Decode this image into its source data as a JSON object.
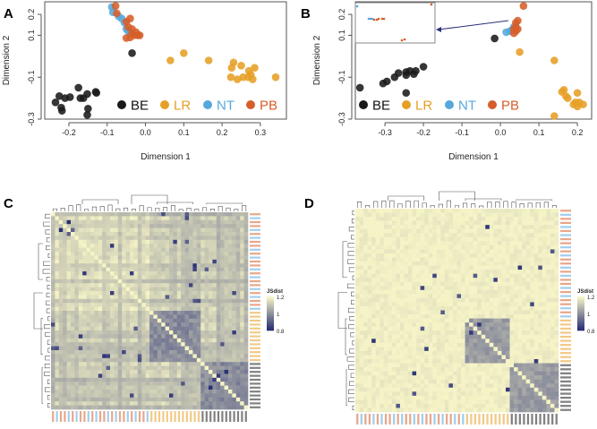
{
  "colors": {
    "BE": "#1a1a1a",
    "LR": "#e69f25",
    "NT": "#56a8dc",
    "PB": "#d55e2a",
    "heat_low": "#1c2470",
    "heat_high": "#f6f4c6"
  },
  "chart_data": [
    {
      "panel": "A",
      "type": "scatter",
      "xlabel": "Dimension 1",
      "ylabel": "Dimension 2",
      "xlim": [
        -0.263,
        0.368
      ],
      "ylim": [
        -0.3,
        0.26
      ],
      "xticks": [
        "-0.2",
        "-0.1",
        "0.0",
        "0.1",
        "0.2",
        "0.3"
      ],
      "xtick_values": [
        -0.2,
        -0.1,
        0,
        0.1,
        0.2,
        0.3
      ],
      "yticks": [
        "0.2",
        "0.1",
        "-0.1",
        "-0.3"
      ],
      "ytick_values": [
        0.2,
        0.1,
        -0.1,
        -0.3
      ],
      "legend": [
        "BE",
        "LR",
        "NT",
        "PB"
      ],
      "legend_position": "bottom-right",
      "series": [
        {
          "name": "BE",
          "points": [
            [
              -0.235,
              -0.22
            ],
            [
              -0.225,
              -0.19
            ],
            [
              -0.22,
              -0.245
            ],
            [
              -0.218,
              -0.26
            ],
            [
              -0.21,
              -0.2
            ],
            [
              -0.197,
              -0.195
            ],
            [
              -0.175,
              -0.15
            ],
            [
              -0.17,
              -0.2
            ],
            [
              -0.162,
              -0.2
            ],
            [
              -0.152,
              -0.18
            ],
            [
              -0.15,
              -0.25
            ],
            [
              -0.152,
              -0.28
            ],
            [
              -0.13,
              -0.17
            ],
            [
              -0.128,
              -0.175
            ],
            [
              -0.035,
              0.015
            ]
          ]
        },
        {
          "name": "LR",
          "points": [
            [
              0.065,
              -0.02
            ],
            [
              0.1,
              0.015
            ],
            [
              0.165,
              -0.02
            ],
            [
              0.23,
              -0.03
            ],
            [
              0.225,
              -0.055
            ],
            [
              0.25,
              -0.045
            ],
            [
              0.285,
              -0.055
            ],
            [
              0.27,
              -0.07
            ],
            [
              0.223,
              -0.1
            ],
            [
              0.24,
              -0.11
            ],
            [
              0.255,
              -0.1
            ],
            [
              0.268,
              -0.1
            ],
            [
              0.28,
              -0.11
            ],
            [
              0.275,
              -0.088
            ],
            [
              0.34,
              -0.1
            ]
          ]
        },
        {
          "name": "NT",
          "points": [
            [
              -0.088,
              0.235
            ],
            [
              -0.085,
              0.21
            ],
            [
              -0.07,
              0.19
            ],
            [
              -0.062,
              0.18
            ],
            [
              -0.055,
              0.16
            ],
            [
              -0.05,
              0.13
            ],
            [
              -0.045,
              0.12
            ],
            [
              -0.04,
              0.11
            ]
          ]
        },
        {
          "name": "PB",
          "points": [
            [
              -0.078,
              0.24
            ],
            [
              -0.075,
              0.205
            ],
            [
              -0.05,
              0.165
            ],
            [
              -0.04,
              0.18
            ],
            [
              -0.045,
              0.14
            ],
            [
              -0.035,
              0.11
            ],
            [
              -0.025,
              0.115
            ],
            [
              -0.03,
              0.1
            ],
            [
              -0.05,
              0.087
            ],
            [
              -0.02,
              0.1
            ],
            [
              -0.04,
              0.09
            ],
            [
              -0.015,
              0.1
            ],
            [
              -0.035,
              0.13
            ]
          ]
        }
      ]
    },
    {
      "panel": "B",
      "type": "scatter",
      "xlabel": "Dimension 1",
      "ylabel": "Dimension 2",
      "xlim": [
        -0.377,
        0.237
      ],
      "ylim": [
        -0.3,
        0.26
      ],
      "xticks": [
        "-0.3",
        "-0.2",
        "-0.1",
        "0.0",
        "0.1",
        "0.2"
      ],
      "xtick_values": [
        -0.3,
        -0.2,
        -0.1,
        0,
        0.1,
        0.2
      ],
      "yticks": [
        "0.2",
        "0.1",
        "-0.1",
        "-0.3"
      ],
      "ytick_values": [
        0.2,
        0.1,
        -0.1,
        -0.3
      ],
      "legend": [
        "BE",
        "LR",
        "NT",
        "PB"
      ],
      "legend_position": "bottom-left",
      "series": [
        {
          "name": "BE",
          "points": [
            [
              -0.365,
              -0.15
            ],
            [
              -0.305,
              -0.13
            ],
            [
              -0.295,
              -0.12
            ],
            [
              -0.275,
              -0.1
            ],
            [
              -0.265,
              -0.08
            ],
            [
              -0.245,
              -0.09
            ],
            [
              -0.245,
              -0.075
            ],
            [
              -0.235,
              -0.07
            ],
            [
              -0.225,
              -0.085
            ],
            [
              -0.22,
              -0.07
            ],
            [
              -0.2,
              -0.05
            ],
            [
              -0.245,
              -0.175
            ],
            [
              -0.015,
              0.085
            ]
          ]
        },
        {
          "name": "LR",
          "points": [
            [
              0.05,
              0.02
            ],
            [
              0.14,
              -0.02
            ],
            [
              0.14,
              -0.285
            ],
            [
              0.16,
              -0.17
            ],
            [
              0.165,
              -0.16
            ],
            [
              0.17,
              -0.19
            ],
            [
              0.175,
              -0.2
            ],
            [
              0.195,
              -0.22
            ],
            [
              0.2,
              -0.24
            ],
            [
              0.205,
              -0.22
            ],
            [
              0.2,
              -0.175
            ],
            [
              0.215,
              -0.23
            ],
            [
              0.19,
              -0.23
            ]
          ]
        },
        {
          "name": "NT",
          "points": [
            [
              0.015,
              0.115
            ],
            [
              0.025,
              0.12
            ],
            [
              0.03,
              0.125
            ],
            [
              0.035,
              0.14
            ]
          ]
        },
        {
          "name": "PB",
          "points": [
            [
              0.06,
              0.24
            ],
            [
              0.045,
              0.17
            ],
            [
              0.04,
              0.16
            ],
            [
              0.04,
              0.14
            ],
            [
              0.035,
              0.13
            ],
            [
              0.04,
              0.12
            ],
            [
              0.035,
              0.11
            ],
            [
              0.045,
              0.13
            ]
          ]
        }
      ],
      "inset": true
    },
    {
      "panel": "C",
      "type": "heatmap",
      "legend_title": "JSdist",
      "legend_ticks": [
        "1.2",
        "1",
        "0.8"
      ],
      "range": [
        0.8,
        1.2
      ],
      "n": 50,
      "blocks": [
        {
          "group": "LR",
          "from": 25,
          "to": 38
        },
        {
          "group": "BE",
          "from": 38,
          "to": 50
        }
      ],
      "style": "dense"
    },
    {
      "panel": "D",
      "type": "heatmap",
      "legend_title": "JSdist",
      "legend_ticks": [
        "1.2",
        "1",
        "0.8"
      ],
      "range": [
        0.8,
        1.2
      ],
      "n": 50,
      "blocks": [
        {
          "group": "LR",
          "from": 27,
          "to": 38
        },
        {
          "group": "BE",
          "from": 38,
          "to": 50
        }
      ],
      "style": "sparse"
    }
  ],
  "panel_labels": [
    "A",
    "B",
    "C",
    "D"
  ]
}
